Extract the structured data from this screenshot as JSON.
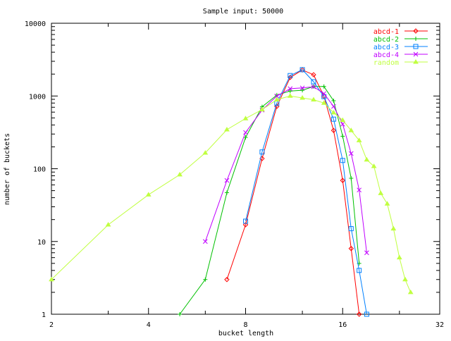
{
  "chart_data": {
    "type": "line",
    "title": "Sample input: 50000",
    "xlabel": "bucket length",
    "ylabel": "number of buckets",
    "xscale": "log2",
    "yscale": "log10",
    "xlim": [
      2,
      32
    ],
    "ylim": [
      1,
      10000
    ],
    "xticks": [
      2,
      4,
      8,
      16,
      32
    ],
    "yticks": [
      1,
      10,
      100,
      1000,
      10000
    ],
    "legend_position": "top-right",
    "grid": false,
    "series": [
      {
        "name": "abcd-1",
        "color": "#ff0000",
        "marker": "diamond",
        "x": [
          7,
          8,
          9,
          10,
          11,
          12,
          13,
          14,
          15,
          16,
          17,
          18
        ],
        "y": [
          3,
          17,
          138,
          720,
          1800,
          2280,
          1960,
          990,
          336,
          69,
          8,
          1
        ]
      },
      {
        "name": "abcd-2",
        "color": "#00c000",
        "marker": "plus",
        "x": [
          5,
          6,
          7,
          8,
          9,
          10,
          11,
          12,
          13,
          14,
          15,
          16,
          17,
          18
        ],
        "y": [
          1,
          3,
          47,
          270,
          710,
          1030,
          1170,
          1200,
          1350,
          1350,
          860,
          280,
          74,
          5
        ]
      },
      {
        "name": "abcd-3",
        "color": "#0080ff",
        "marker": "box",
        "x": [
          8,
          9,
          10,
          11,
          12,
          13,
          14,
          15,
          16,
          17,
          18,
          19
        ],
        "y": [
          19,
          170,
          800,
          1910,
          2300,
          1570,
          980,
          480,
          130,
          15,
          4,
          1
        ]
      },
      {
        "name": "abcd-4",
        "color": "#c000ff",
        "marker": "cross",
        "x": [
          6,
          7,
          8,
          9,
          10,
          11,
          12,
          13,
          14,
          15,
          16,
          17,
          18,
          19
        ],
        "y": [
          10,
          69,
          315,
          640,
          1000,
          1260,
          1290,
          1340,
          1080,
          720,
          410,
          162,
          51,
          7
        ]
      },
      {
        "name": "random",
        "color": "#c0ff40",
        "marker": "triangle",
        "x": [
          2,
          3,
          4,
          5,
          6,
          7,
          8,
          9,
          10,
          11,
          12,
          13,
          14,
          15,
          16,
          17,
          18,
          19,
          20,
          21,
          22,
          23,
          24,
          25,
          26
        ],
        "y": [
          3,
          17,
          44,
          83,
          165,
          345,
          490,
          650,
          890,
          1000,
          940,
          890,
          800,
          590,
          465,
          336,
          245,
          133,
          108,
          46,
          33,
          15,
          6,
          3,
          2
        ]
      }
    ]
  }
}
